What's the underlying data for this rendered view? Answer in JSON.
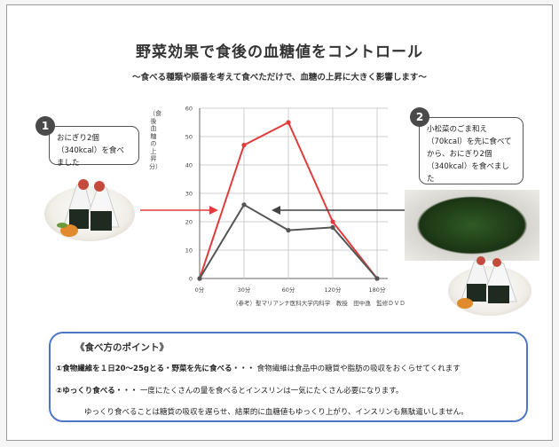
{
  "title": "野菜効果で食後の血糖値をコントロール",
  "subtitle": "～食べる種類や順番を考えて食べただけで、血糖の上昇に大きく影響します～",
  "callout1": {
    "number": "1",
    "text": "おにぎり2個（340kcal）を食べました"
  },
  "callout2": {
    "number": "2",
    "text": "小松菜のごま和え（70kcal）を先に食べてから、おにぎり2個（340kcal）を食べました"
  },
  "chart_data": {
    "type": "line",
    "ylabel": "（食後血糖の上昇分）",
    "ylim": [
      0,
      60
    ],
    "yticks": [
      "0",
      "10",
      "20",
      "30",
      "40",
      "50",
      "60"
    ],
    "categories": [
      "0分",
      "30分",
      "60分",
      "120分",
      "180分"
    ],
    "series": [
      {
        "values": [
          0,
          47,
          55,
          20,
          0
        ],
        "color": "#e03c3c"
      },
      {
        "values": [
          0,
          26,
          17,
          18,
          0
        ],
        "color": "#555555"
      }
    ],
    "grid": true
  },
  "credit": "（参考）聖マリアンナ医科大学内科学　教授　田中逸　監修ＤＶＤ",
  "tips": {
    "title": "《食べ方のポイント》",
    "line1_bold": "①食物繊維を１日20～25gとる・野菜を先に食べる・・・",
    "line1_rest": "食物繊維は食品中の糖質や脂肪の吸収をおくらせてくれます",
    "line2_bold": "②ゆっくり食べる・・・",
    "line2_rest": "一度にたくさんの量を食べるとインスリンは一気にたくさん必要になります。",
    "line3": "ゆっくり食べることは糖質の吸収を遅らせ、結果的に血糖値もゆっくり上がり、インスリンも無駄遣いしません。"
  }
}
